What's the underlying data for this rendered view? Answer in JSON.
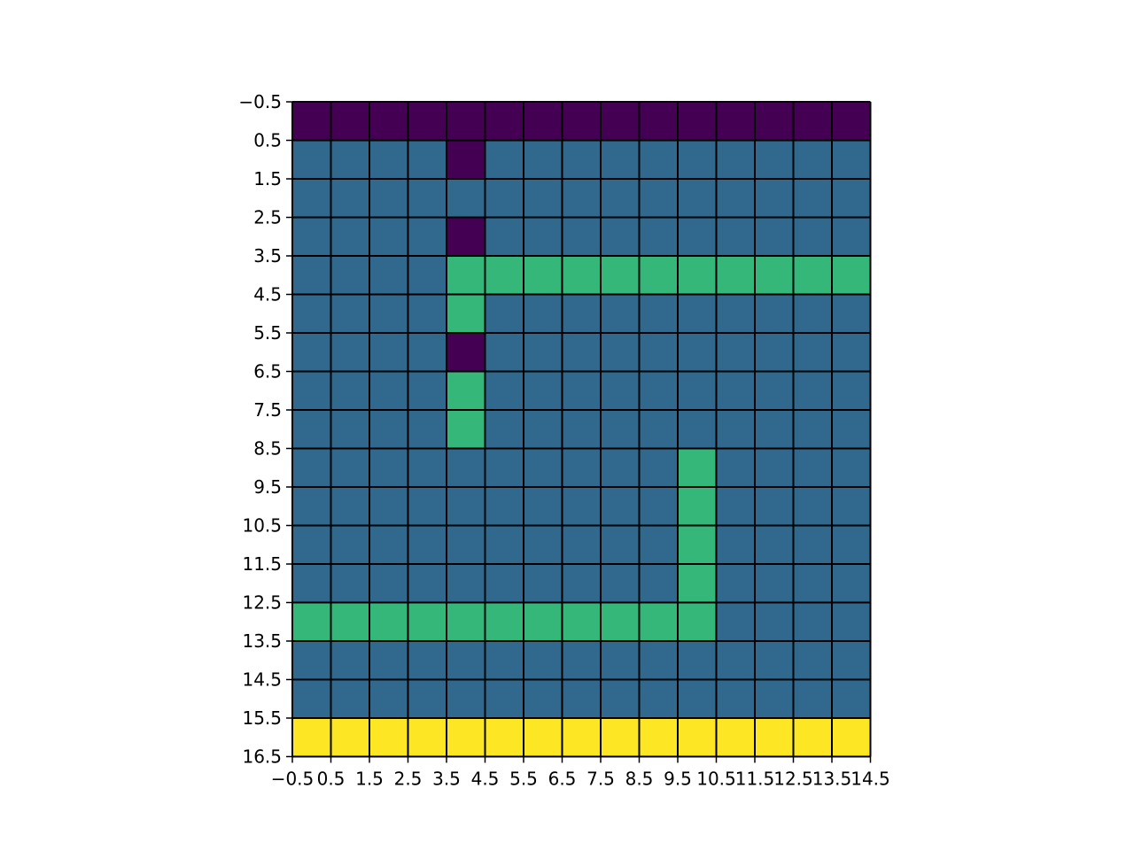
{
  "chart_data": {
    "type": "heatmap",
    "title": "",
    "xlabel": "",
    "ylabel": "",
    "colormap": "viridis",
    "legend": "none",
    "grid": true,
    "gridline_color": "#000000",
    "xlim": [
      -0.5,
      14.5
    ],
    "ylim": [
      16.5,
      -0.5
    ],
    "xticks": [
      "−0.5",
      "0.5",
      "1.5",
      "2.5",
      "3.5",
      "4.5",
      "5.5",
      "6.5",
      "7.5",
      "8.5",
      "9.5",
      "10.5",
      "11.5",
      "12.5",
      "13.5",
      "14.5"
    ],
    "yticks": [
      "−0.5",
      "0.5",
      "1.5",
      "2.5",
      "3.5",
      "4.5",
      "5.5",
      "6.5",
      "7.5",
      "8.5",
      "9.5",
      "10.5",
      "11.5",
      "12.5",
      "13.5",
      "14.5",
      "15.5",
      "16.5"
    ],
    "level_colors": [
      "#440154",
      "#31688e",
      "#35b779",
      "#fde725"
    ],
    "matrix": [
      [
        0,
        0,
        0,
        0,
        0,
        0,
        0,
        0,
        0,
        0,
        0,
        0,
        0,
        0,
        0
      ],
      [
        1,
        1,
        1,
        1,
        0,
        1,
        1,
        1,
        1,
        1,
        1,
        1,
        1,
        1,
        1
      ],
      [
        1,
        1,
        1,
        1,
        1,
        1,
        1,
        1,
        1,
        1,
        1,
        1,
        1,
        1,
        1
      ],
      [
        1,
        1,
        1,
        1,
        0,
        1,
        1,
        1,
        1,
        1,
        1,
        1,
        1,
        1,
        1
      ],
      [
        1,
        1,
        1,
        1,
        2,
        2,
        2,
        2,
        2,
        2,
        2,
        2,
        2,
        2,
        2
      ],
      [
        1,
        1,
        1,
        1,
        2,
        1,
        1,
        1,
        1,
        1,
        1,
        1,
        1,
        1,
        1
      ],
      [
        1,
        1,
        1,
        1,
        0,
        1,
        1,
        1,
        1,
        1,
        1,
        1,
        1,
        1,
        1
      ],
      [
        1,
        1,
        1,
        1,
        2,
        1,
        1,
        1,
        1,
        1,
        1,
        1,
        1,
        1,
        1
      ],
      [
        1,
        1,
        1,
        1,
        2,
        1,
        1,
        1,
        1,
        1,
        1,
        1,
        1,
        1,
        1
      ],
      [
        1,
        1,
        1,
        1,
        1,
        1,
        1,
        1,
        1,
        1,
        2,
        1,
        1,
        1,
        1
      ],
      [
        1,
        1,
        1,
        1,
        1,
        1,
        1,
        1,
        1,
        1,
        2,
        1,
        1,
        1,
        1
      ],
      [
        1,
        1,
        1,
        1,
        1,
        1,
        1,
        1,
        1,
        1,
        2,
        1,
        1,
        1,
        1
      ],
      [
        1,
        1,
        1,
        1,
        1,
        1,
        1,
        1,
        1,
        1,
        2,
        1,
        1,
        1,
        1
      ],
      [
        2,
        2,
        2,
        2,
        2,
        2,
        2,
        2,
        2,
        2,
        2,
        1,
        1,
        1,
        1
      ],
      [
        1,
        1,
        1,
        1,
        1,
        1,
        1,
        1,
        1,
        1,
        1,
        1,
        1,
        1,
        1
      ],
      [
        1,
        1,
        1,
        1,
        1,
        1,
        1,
        1,
        1,
        1,
        1,
        1,
        1,
        1,
        1
      ],
      [
        3,
        3,
        3,
        3,
        3,
        3,
        3,
        3,
        3,
        3,
        3,
        3,
        3,
        3,
        3
      ]
    ]
  }
}
